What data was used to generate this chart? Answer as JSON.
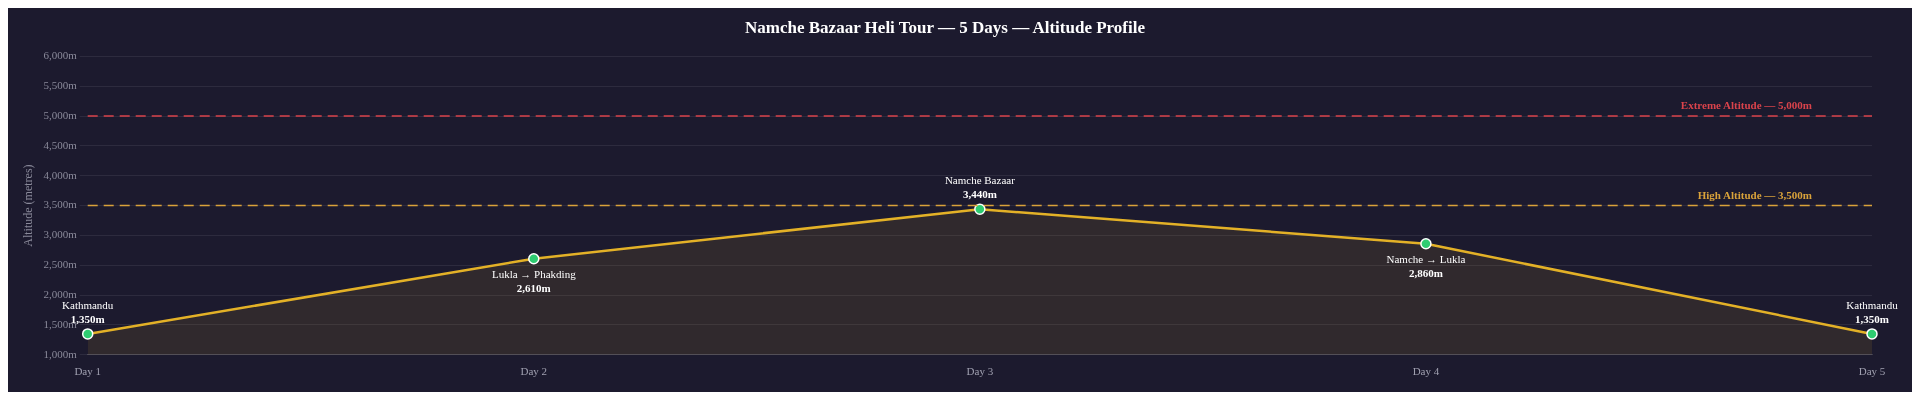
{
  "chart_data": {
    "type": "area",
    "title": "Namche Bazaar Heli Tour — 5 Days — Altitude Profile",
    "ylabel": "Altitude (metres)",
    "categories": [
      "Day 1",
      "Day 2",
      "Day 3",
      "Day 4",
      "Day 5"
    ],
    "series": [
      {
        "color": "#e3b127",
        "values": [
          1350,
          2610,
          3440,
          2860,
          1350
        ],
        "value_labels": [
          "1,350m",
          "2,610m",
          "3,440m",
          "2,860m",
          "1,350m"
        ]
      }
    ],
    "marker": "circle",
    "grid": "y",
    "legend": false,
    "ylim": [
      1000,
      6000
    ],
    "yticks": [
      {
        "value": 1000,
        "label": "1,000m"
      },
      {
        "value": 1500,
        "label": "1,500m"
      },
      {
        "value": 2000,
        "label": "2,000m"
      },
      {
        "value": 2500,
        "label": "2,500m"
      },
      {
        "value": 3000,
        "label": "3,000m"
      },
      {
        "value": 3500,
        "label": "3,500m"
      },
      {
        "value": 4000,
        "label": "4,000m"
      },
      {
        "value": 4500,
        "label": "4,500m"
      },
      {
        "value": 5000,
        "label": "5,000m"
      },
      {
        "value": 5500,
        "label": "5,500m"
      },
      {
        "value": 6000,
        "label": "6,000m"
      }
    ],
    "ref_lines": [
      {
        "axis": "y",
        "value": 5000,
        "label": "Extreme Altitude — 5,000m",
        "color": "#d9434b",
        "line_style": "dashed"
      },
      {
        "axis": "y",
        "value": 3500,
        "label": "High Altitude — 3,500m",
        "color": "#d9a23a",
        "line_style": "dashed"
      }
    ],
    "annotations": [
      {
        "text": "Kathmandu",
        "x": "Day 1",
        "y": 1350
      },
      {
        "text": "Lukla → Phakding",
        "x": "Day 2",
        "y": 2610
      },
      {
        "text": "Namche Bazaar",
        "x": "Day 3",
        "y": 3440
      },
      {
        "text": "Namche → Lukla",
        "x": "Day 4",
        "y": 2860
      },
      {
        "text": "Kathmandu",
        "x": "Day 5",
        "y": 1350
      }
    ]
  }
}
